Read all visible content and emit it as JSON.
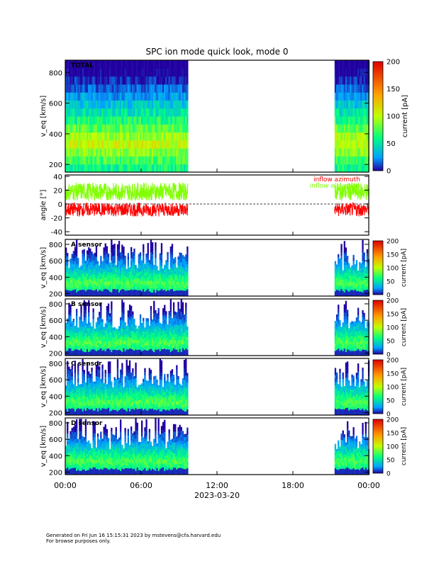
{
  "title": "SPC ion mode quick look, mode 0",
  "footer": {
    "line1": "Generated on Fri Jun 16 15:15:31 2023 by mstevens@cfa.harvard.edu",
    "line2": "For browse purposes only."
  },
  "chart_data": {
    "type": "heatmap",
    "x_axis": {
      "ticks": [
        "00:00",
        "06:00",
        "12:00",
        "18:00",
        "00:00"
      ],
      "range_hours": [
        0,
        24
      ],
      "date_label": "2023-03-20"
    },
    "data_coverage_hours": [
      [
        0,
        9.7
      ],
      [
        21.3,
        24
      ]
    ],
    "panels": [
      {
        "name": "total",
        "label": "TOTAL",
        "ylabel": "v_eq [km/s]",
        "ylim": [
          150,
          880
        ],
        "yticks": [
          "200",
          "400",
          "600",
          "800"
        ],
        "colorbar": {
          "label": "current [pA]",
          "range": [
            0,
            200
          ],
          "ticks": [
            "0",
            "50",
            "100",
            "150",
            "200"
          ]
        }
      },
      {
        "name": "angle",
        "type": "line",
        "ylabel": "angle [°]",
        "ylim": [
          -45,
          42
        ],
        "yticks": [
          "-40",
          "-20",
          "0",
          "20",
          "40"
        ],
        "series": [
          {
            "name": "inflow azimuth",
            "color": "#ff0000",
            "mean": -8
          },
          {
            "name": "inflow elevation",
            "color": "#80ff00",
            "mean": 18
          }
        ]
      },
      {
        "name": "a",
        "label": "A sensor",
        "ylabel": "v_eq [km/s]",
        "ylim": [
          170,
          860
        ],
        "yticks": [
          "200",
          "400",
          "600",
          "800"
        ],
        "colorbar": {
          "label": "current [pA]",
          "range": [
            0,
            200
          ],
          "ticks": [
            "0",
            "50",
            "100",
            "150",
            "200"
          ]
        }
      },
      {
        "name": "b",
        "label": "B sensor",
        "ylabel": "v_eq [km/s]",
        "ylim": [
          170,
          860
        ],
        "yticks": [
          "200",
          "400",
          "600",
          "800"
        ],
        "colorbar": {
          "label": "current [pA]",
          "range": [
            0,
            200
          ],
          "ticks": [
            "0",
            "50",
            "100",
            "150",
            "200"
          ]
        }
      },
      {
        "name": "c",
        "label": "C sensor",
        "ylabel": "v_eq [km/s]",
        "ylim": [
          170,
          860
        ],
        "yticks": [
          "200",
          "400",
          "600",
          "800"
        ],
        "colorbar": {
          "label": "current [pA]",
          "range": [
            0,
            200
          ],
          "ticks": [
            "0",
            "50",
            "100",
            "150",
            "200"
          ]
        }
      },
      {
        "name": "d",
        "label": "D sensor",
        "ylabel": "v_eq [km/s]",
        "ylim": [
          170,
          860
        ],
        "yticks": [
          "200",
          "400",
          "600",
          "800"
        ],
        "colorbar": {
          "label": "current [pA]",
          "range": [
            0,
            200
          ],
          "ticks": [
            "0",
            "50",
            "100",
            "150",
            "200"
          ]
        }
      }
    ]
  }
}
